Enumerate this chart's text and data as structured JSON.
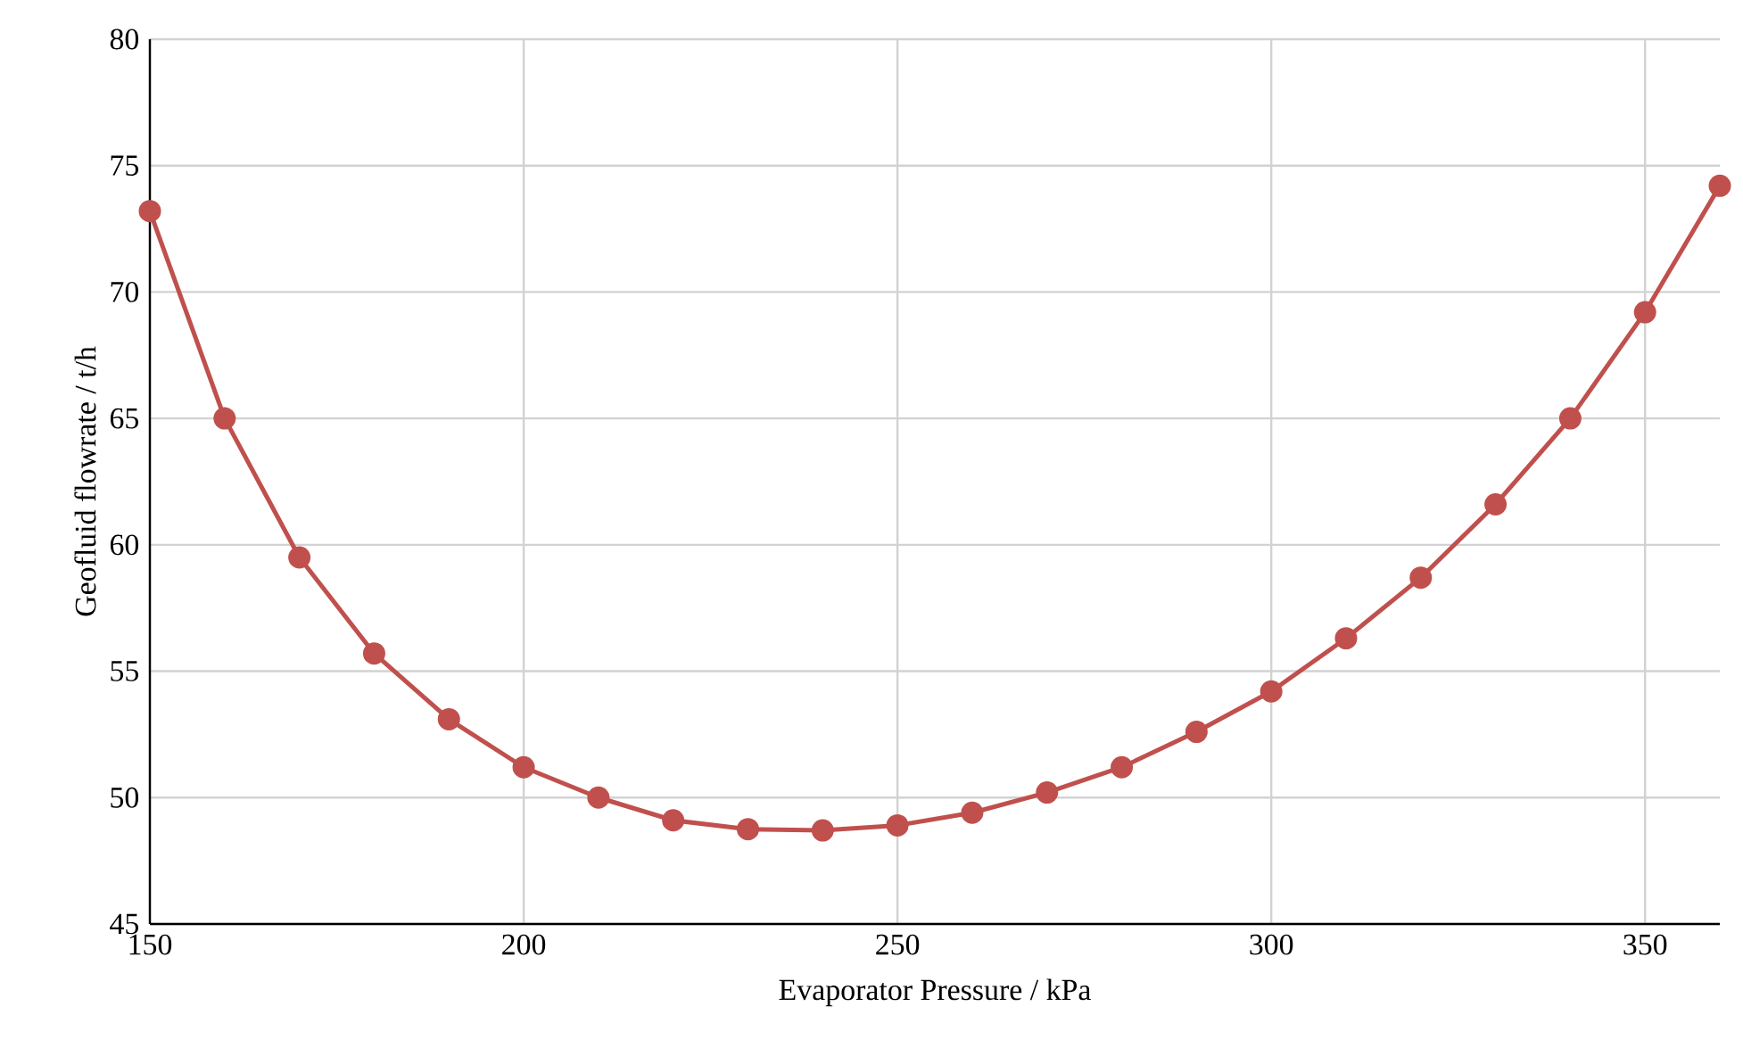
{
  "chart_data": {
    "type": "line",
    "xlabel": "Evaporator Pressure / kPa",
    "ylabel": "Geofluid flowrate / t/h",
    "x": [
      150,
      160,
      170,
      180,
      190,
      200,
      210,
      220,
      230,
      240,
      250,
      260,
      270,
      280,
      290,
      300,
      310,
      320,
      330,
      340,
      350,
      360
    ],
    "series": [
      {
        "color": "#c0504d",
        "values": [
          73.2,
          65.0,
          59.5,
          55.7,
          53.1,
          51.2,
          50.0,
          49.1,
          48.75,
          48.7,
          48.9,
          49.4,
          50.2,
          51.2,
          52.6,
          54.2,
          56.3,
          58.7,
          61.6,
          65.0,
          69.2,
          74.2
        ]
      }
    ],
    "xlim": [
      150,
      360
    ],
    "ylim": [
      45,
      80
    ],
    "xticks": [
      150,
      200,
      250,
      300,
      350
    ],
    "yticks": [
      45,
      50,
      55,
      60,
      65,
      70,
      75,
      80
    ],
    "grid": true,
    "marker": "circle",
    "line_style": "solid"
  }
}
